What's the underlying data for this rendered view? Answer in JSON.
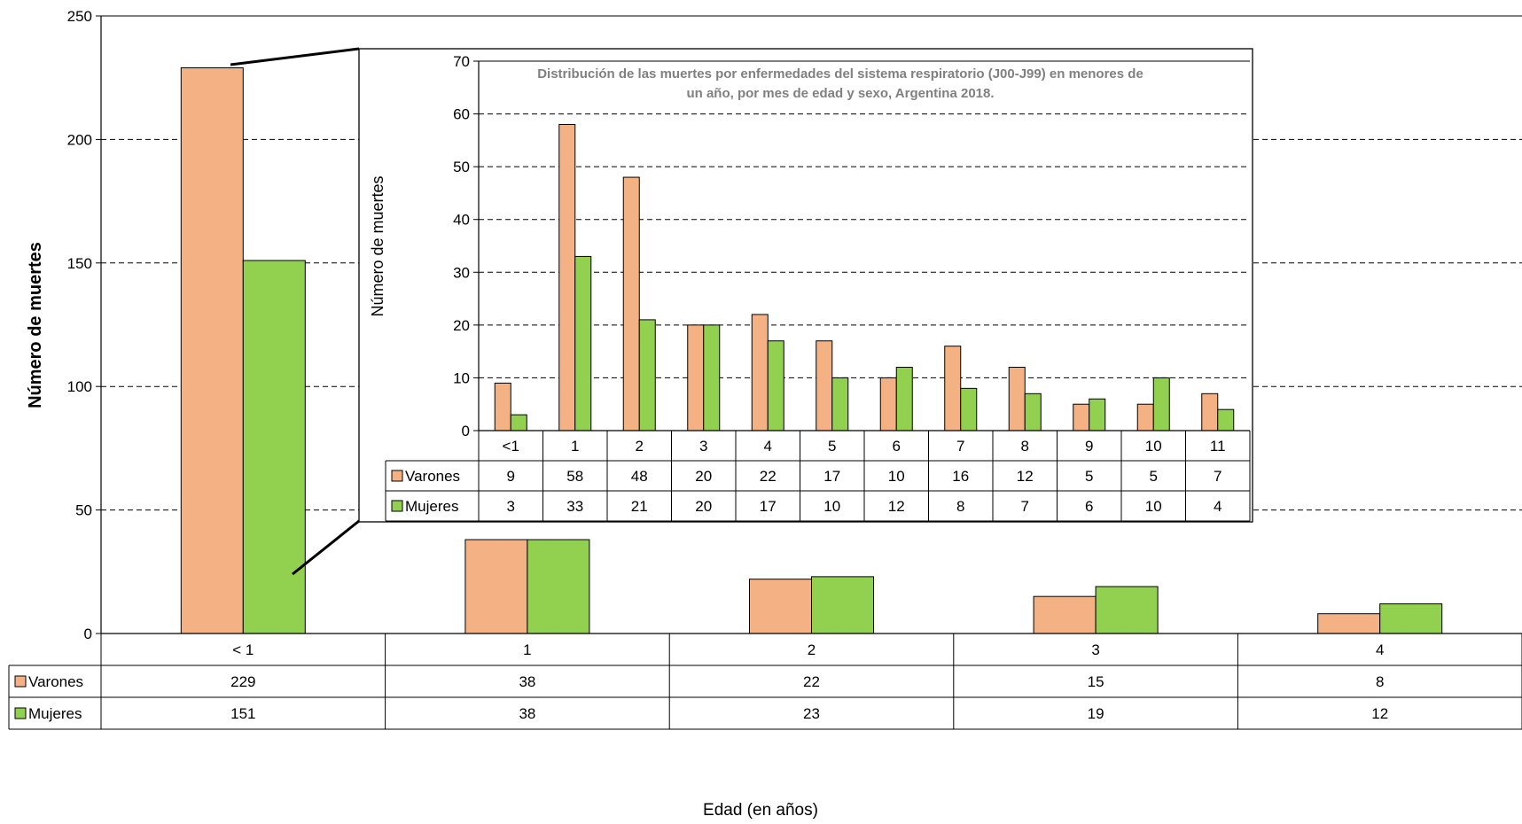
{
  "chart_data": [
    {
      "type": "bar",
      "title": "",
      "xlabel": "Edad (en años)",
      "ylabel": "Número de muertes",
      "ylim": [
        0,
        250
      ],
      "yticks": [
        0,
        50,
        100,
        150,
        200,
        250
      ],
      "grid": true,
      "legend": "data-table-rows",
      "categories": [
        "< 1",
        "1",
        "2",
        "3",
        "4"
      ],
      "series": [
        {
          "name": "Varones",
          "color": "#F4B183",
          "values": [
            229,
            38,
            22,
            15,
            8
          ]
        },
        {
          "name": "Mujeres",
          "color": "#92D050",
          "values": [
            151,
            38,
            23,
            19,
            12
          ]
        }
      ]
    },
    {
      "type": "bar",
      "title": "Distribución de las muertes por enfermedades del sistema respiratorio (J00-J99) en menores de un año, por mes de edad y sexo, Argentina 2018.",
      "title_lines": [
        "Distribución de las muertes por enfermedades del sistema respiratorio (J00-J99) en menores de",
        "un año, por mes de edad y sexo, Argentina 2018."
      ],
      "xlabel": "",
      "ylabel": "Número de muertes",
      "ylim": [
        0,
        70
      ],
      "yticks": [
        0,
        10,
        20,
        30,
        40,
        50,
        60,
        70
      ],
      "grid": true,
      "legend": "data-table-rows",
      "categories": [
        "<1",
        "1",
        "2",
        "3",
        "4",
        "5",
        "6",
        "7",
        "8",
        "9",
        "10",
        "11"
      ],
      "series": [
        {
          "name": "Varones",
          "color": "#F4B183",
          "values": [
            9,
            58,
            48,
            20,
            22,
            17,
            10,
            16,
            12,
            5,
            5,
            7
          ]
        },
        {
          "name": "Mujeres",
          "color": "#92D050",
          "values": [
            3,
            33,
            21,
            20,
            17,
            10,
            12,
            8,
            7,
            6,
            10,
            4
          ]
        }
      ]
    }
  ]
}
